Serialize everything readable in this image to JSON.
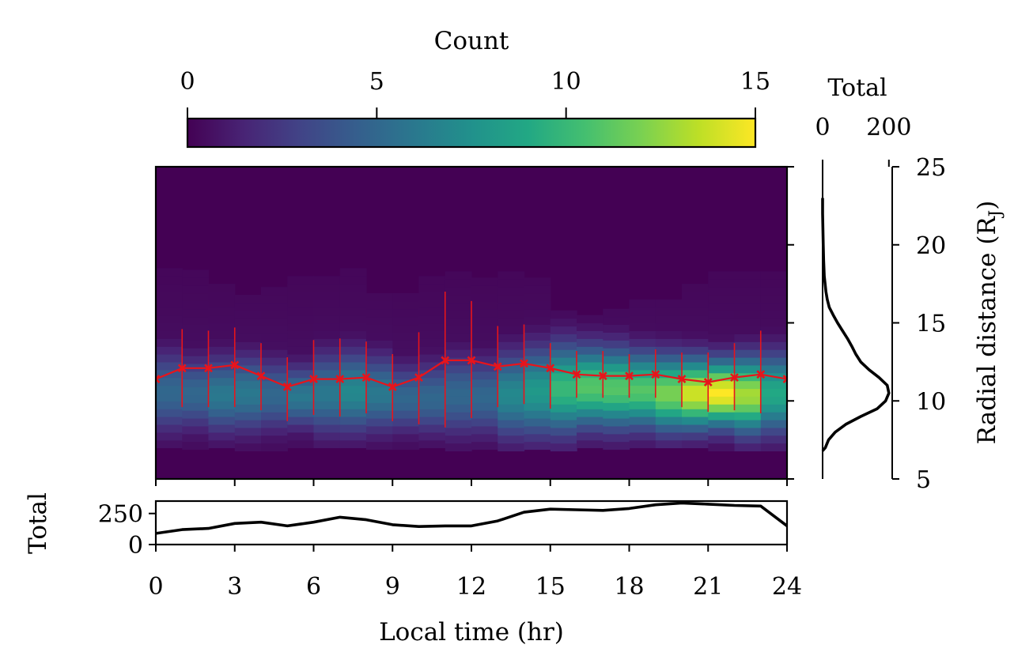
{
  "chart_data": [
    {
      "type": "heatmap",
      "xlabel": "Local time (hr)",
      "ylabel": "Radial distance (R_J)",
      "ylabel_parts": {
        "base": "Radial distance (R",
        "sub": "J",
        "end": ")"
      },
      "xlim": [
        0,
        24
      ],
      "ylim": [
        5,
        25
      ],
      "y_tick_labels": [
        "5",
        "10",
        "15",
        "20",
        "25"
      ],
      "y_ticks": [
        5,
        10,
        15,
        20,
        25
      ],
      "colormap": "viridis",
      "colorbar": {
        "label": "Count",
        "range": [
          0,
          15
        ],
        "ticks": [
          0,
          5,
          10,
          15
        ],
        "tick_labels": [
          "0",
          "5",
          "10",
          "15"
        ],
        "placement": "top"
      },
      "bin_width_hr": 1,
      "bin_height_rj": 0.5,
      "per_hour": {
        "peak_r": [
          10.6,
          10.5,
          10.4,
          10.5,
          10.4,
          10.3,
          10.5,
          10.6,
          10.5,
          10.2,
          10.2,
          10.4,
          10.3,
          10.4,
          10.6,
          10.8,
          10.9,
          10.8,
          10.7,
          10.5,
          10.5,
          10.5,
          10.4,
          10.5
        ],
        "spread": [
          1.7,
          1.5,
          1.6,
          1.6,
          1.5,
          1.3,
          1.7,
          1.7,
          1.6,
          1.4,
          1.5,
          1.7,
          1.6,
          1.8,
          1.9,
          1.9,
          1.7,
          1.7,
          1.6,
          1.6,
          1.5,
          1.4,
          1.6,
          1.7
        ],
        "peak_count": [
          5,
          5,
          6,
          6,
          5,
          6,
          6,
          7,
          6,
          5,
          5,
          5,
          5,
          7,
          8,
          10,
          11,
          11,
          11,
          12,
          14,
          15,
          13,
          9
        ],
        "r_min": [
          7.0,
          6.9,
          7.0,
          6.8,
          6.8,
          7.0,
          7.0,
          7.0,
          6.9,
          6.9,
          7.0,
          6.8,
          6.9,
          6.8,
          6.9,
          6.8,
          7.0,
          6.9,
          7.0,
          7.0,
          7.0,
          6.8,
          6.8,
          6.8
        ],
        "r_max": [
          18.4,
          18.1,
          17.3,
          16.6,
          17.0,
          18.7,
          18.8,
          18.7,
          16.7,
          16.7,
          18.1,
          22.9,
          19.6,
          18.2,
          17.6,
          15.8,
          15.4,
          15.5,
          16.2,
          16.4,
          17.2,
          18.0,
          18.6,
          18.9
        ]
      },
      "mean_curve": {
        "name": "mean",
        "color": "#e8141b",
        "x": [
          0,
          1,
          2,
          3,
          4,
          5,
          6,
          7,
          8,
          9,
          10,
          11,
          12,
          13,
          14,
          15,
          16,
          17,
          18,
          19,
          20,
          21,
          22,
          23,
          24
        ],
        "y": [
          11.4,
          12.1,
          12.1,
          12.3,
          11.6,
          10.9,
          11.4,
          11.4,
          11.5,
          10.9,
          11.5,
          12.6,
          12.6,
          12.2,
          12.4,
          12.1,
          11.7,
          11.6,
          11.6,
          11.7,
          11.4,
          11.2,
          11.5,
          11.7,
          11.4
        ],
        "err_low": [
          9.0,
          9.6,
          9.6,
          9.6,
          9.4,
          8.7,
          9.1,
          9.0,
          9.2,
          8.7,
          8.5,
          8.3,
          8.9,
          9.6,
          9.8,
          9.5,
          10.2,
          10.2,
          10.2,
          10.2,
          9.6,
          9.3,
          9.4,
          9.2,
          9.1
        ],
        "err_high": [
          13.8,
          14.6,
          14.5,
          14.7,
          13.7,
          12.8,
          13.9,
          14.0,
          13.8,
          13.0,
          14.4,
          17.0,
          16.4,
          14.8,
          14.9,
          13.7,
          13.2,
          13.2,
          13.0,
          13.3,
          13.1,
          13.1,
          13.7,
          14.5,
          13.7
        ]
      }
    },
    {
      "type": "line",
      "xlabel": "Local time (hr)",
      "ylabel": "Total",
      "xlim": [
        0,
        24
      ],
      "ylim": [
        0,
        350
      ],
      "x_ticks": [
        0,
        3,
        6,
        9,
        12,
        15,
        18,
        21,
        24
      ],
      "x_tick_labels": [
        "0",
        "3",
        "6",
        "9",
        "12",
        "15",
        "18",
        "21",
        "24"
      ],
      "y_ticks": [
        0,
        250
      ],
      "y_tick_labels": [
        "0",
        "250"
      ],
      "x": [
        0,
        1,
        2,
        3,
        4,
        5,
        6,
        7,
        8,
        9,
        10,
        11,
        12,
        13,
        14,
        15,
        16,
        17,
        18,
        19,
        20,
        21,
        22,
        23,
        24
      ],
      "y": [
        90,
        120,
        130,
        170,
        180,
        150,
        180,
        220,
        200,
        160,
        145,
        150,
        150,
        190,
        260,
        285,
        280,
        275,
        290,
        320,
        335,
        325,
        315,
        310,
        150
      ]
    },
    {
      "type": "line",
      "orientation": "vertical",
      "title": "Total",
      "xlim": [
        0,
        210
      ],
      "x_ticks": [
        0,
        200
      ],
      "x_tick_labels": [
        "0",
        "200"
      ],
      "ylim": [
        5,
        25
      ],
      "r": [
        6.8,
        7.0,
        7.5,
        8.0,
        8.5,
        9.0,
        9.5,
        10.0,
        10.5,
        11.0,
        11.5,
        12.0,
        12.5,
        13.0,
        13.5,
        14.0,
        14.5,
        15.0,
        15.5,
        16.0,
        16.5,
        17.0,
        18.0,
        19.0,
        20.0,
        21.0,
        22.0,
        23.0
      ],
      "total": [
        0,
        8,
        18,
        38,
        70,
        115,
        165,
        190,
        200,
        195,
        170,
        140,
        115,
        100,
        88,
        75,
        60,
        45,
        32,
        20,
        14,
        10,
        5,
        3,
        2,
        1,
        0,
        0
      ]
    }
  ]
}
